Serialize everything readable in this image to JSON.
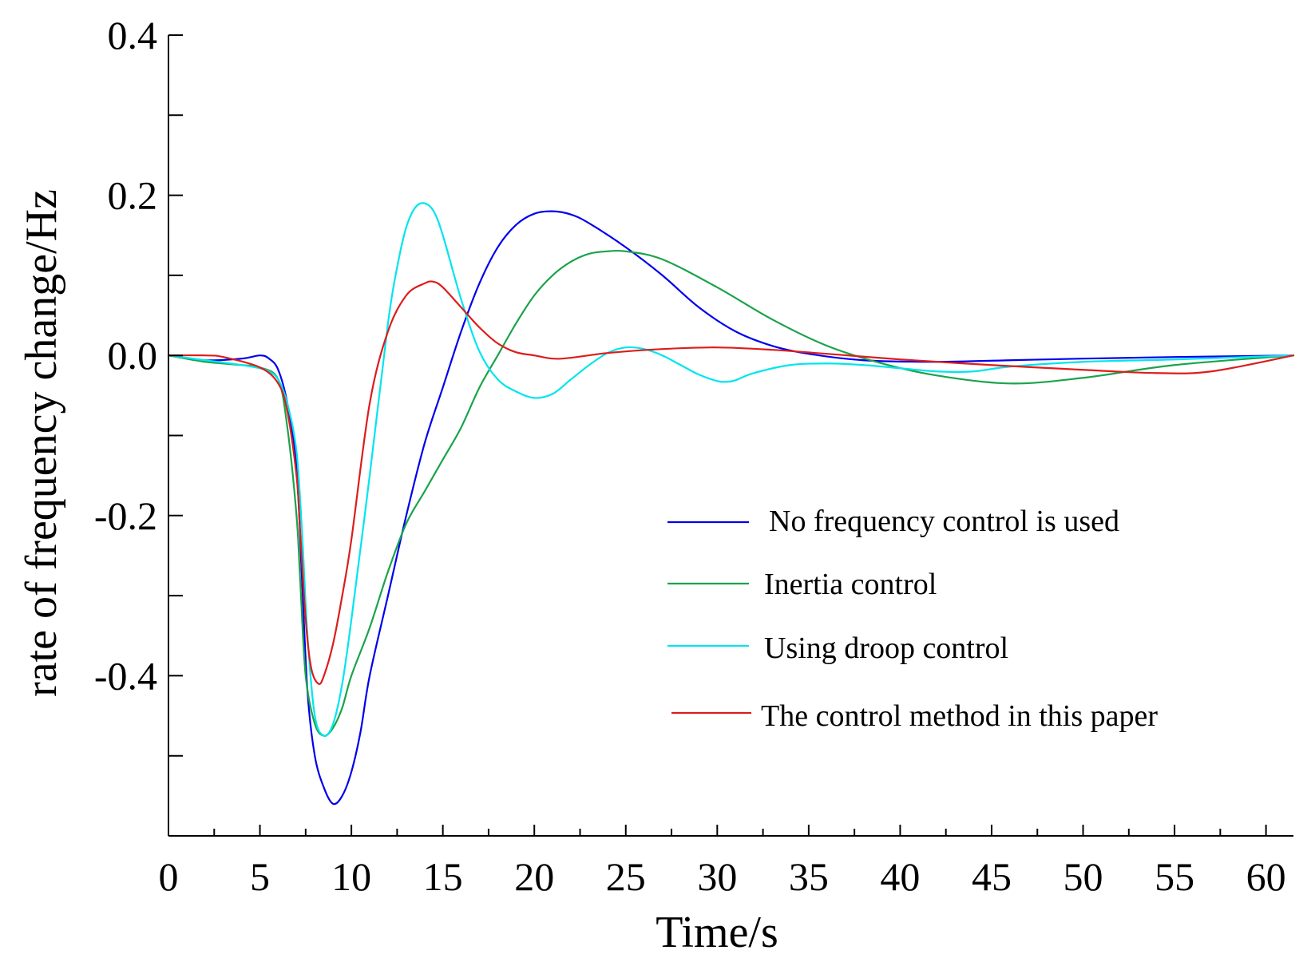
{
  "chart_data": {
    "type": "line",
    "title": "",
    "xlabel": "Time/s",
    "ylabel": "rate of frequency change/Hz",
    "xlim": [
      0,
      61.5
    ],
    "ylim": [
      -0.6,
      0.4
    ],
    "x_ticks": [
      0,
      5,
      10,
      15,
      20,
      25,
      30,
      35,
      40,
      45,
      50,
      55,
      60
    ],
    "x_tick_labels": [
      "0",
      "5",
      "10",
      "15",
      "20",
      "25",
      "30",
      "35",
      "40",
      "45",
      "50",
      "55",
      "60"
    ],
    "x_minor_step": 2.5,
    "y_ticks": [
      -0.4,
      -0.2,
      0.0,
      0.2,
      0.4
    ],
    "y_tick_labels": [
      "-0.4",
      "-0.2",
      "0.0",
      "0.2",
      "0.4"
    ],
    "y_minor_step": 0.1,
    "grid": false,
    "legend_position": "lower-right",
    "series": [
      {
        "name": "No frequency control is used",
        "color": "#0000ee",
        "x": [
          0,
          2,
          4,
          5,
          5.5,
          6,
          6.5,
          7,
          7.3,
          7.6,
          8,
          8.5,
          9,
          9.5,
          10,
          10.5,
          11,
          12,
          13,
          14,
          15,
          16,
          17,
          18,
          19,
          20,
          21,
          22,
          23,
          25,
          27,
          29,
          31,
          33,
          35,
          38,
          42,
          46,
          50,
          55,
          61.5
        ],
        "values": [
          0,
          -0.006,
          -0.004,
          0.0,
          -0.004,
          -0.018,
          -0.06,
          -0.14,
          -0.28,
          -0.42,
          -0.5,
          -0.54,
          -0.56,
          -0.55,
          -0.52,
          -0.47,
          -0.4,
          -0.3,
          -0.2,
          -0.11,
          -0.04,
          0.03,
          0.09,
          0.135,
          0.163,
          0.177,
          0.18,
          0.176,
          0.165,
          0.135,
          0.1,
          0.06,
          0.03,
          0.012,
          0.002,
          -0.006,
          -0.008,
          -0.006,
          -0.004,
          -0.002,
          0.0
        ]
      },
      {
        "name": "Inertia control",
        "color": "#1aa34a",
        "x": [
          0,
          2,
          4,
          5,
          6,
          6.5,
          7,
          7.2,
          7.5,
          8,
          8.5,
          9,
          9.5,
          10,
          11,
          12,
          13,
          14,
          15,
          16,
          17,
          18,
          19,
          20,
          21,
          22,
          23,
          24,
          25,
          27,
          30,
          33,
          36,
          39,
          42,
          46,
          50,
          55,
          61.5
        ],
        "values": [
          0,
          -0.008,
          -0.012,
          -0.015,
          -0.03,
          -0.09,
          -0.2,
          -0.28,
          -0.4,
          -0.46,
          -0.475,
          -0.465,
          -0.44,
          -0.4,
          -0.34,
          -0.27,
          -0.21,
          -0.17,
          -0.13,
          -0.09,
          -0.04,
          0.0,
          0.04,
          0.075,
          0.1,
          0.117,
          0.127,
          0.13,
          0.13,
          0.12,
          0.085,
          0.045,
          0.012,
          -0.01,
          -0.025,
          -0.035,
          -0.028,
          -0.012,
          0.0
        ]
      },
      {
        "name": "Using droop control",
        "color": "#00e5ee",
        "x": [
          0,
          2,
          4,
          5,
          5.5,
          6,
          6.5,
          7,
          7.3,
          7.6,
          8,
          8.5,
          9,
          9.5,
          10,
          11,
          12,
          12.5,
          13,
          13.5,
          14,
          14.5,
          15,
          16,
          17,
          18,
          19,
          20,
          21,
          22,
          23,
          24,
          25,
          26,
          27,
          28,
          29,
          30,
          30.5,
          31,
          32,
          34,
          36,
          38,
          40,
          42,
          44,
          46,
          50,
          55,
          61.5
        ],
        "values": [
          0,
          -0.006,
          -0.012,
          -0.016,
          -0.02,
          -0.03,
          -0.06,
          -0.12,
          -0.22,
          -0.35,
          -0.45,
          -0.475,
          -0.46,
          -0.41,
          -0.33,
          -0.15,
          0.04,
          0.11,
          0.16,
          0.185,
          0.19,
          0.18,
          0.15,
          0.07,
          0.005,
          -0.03,
          -0.045,
          -0.053,
          -0.048,
          -0.03,
          -0.012,
          0.003,
          0.01,
          0.008,
          0.0,
          -0.012,
          -0.024,
          -0.032,
          -0.033,
          -0.031,
          -0.022,
          -0.012,
          -0.01,
          -0.012,
          -0.016,
          -0.02,
          -0.02,
          -0.014,
          -0.008,
          -0.005,
          0.0
        ]
      },
      {
        "name": "The control method in this paper",
        "color": "#dd1c1c",
        "x": [
          0,
          2,
          3,
          5,
          6,
          6.5,
          7,
          7.2,
          7.5,
          7.8,
          8.2,
          8.5,
          9,
          9.5,
          10,
          11,
          12,
          13,
          14,
          14.5,
          15,
          16,
          17,
          18,
          19,
          20,
          21,
          22,
          24,
          27,
          30,
          33,
          36,
          40,
          45,
          50,
          54,
          57,
          61.5
        ],
        "values": [
          0,
          0,
          -0.002,
          -0.015,
          -0.035,
          -0.07,
          -0.15,
          -0.22,
          -0.33,
          -0.39,
          -0.41,
          -0.4,
          -0.36,
          -0.3,
          -0.23,
          -0.06,
          0.03,
          0.075,
          0.09,
          0.092,
          0.085,
          0.06,
          0.035,
          0.015,
          0.004,
          0.0,
          -0.004,
          -0.003,
          0.003,
          0.008,
          0.01,
          0.007,
          0.002,
          -0.005,
          -0.012,
          -0.018,
          -0.022,
          -0.02,
          0.0
        ]
      }
    ]
  }
}
